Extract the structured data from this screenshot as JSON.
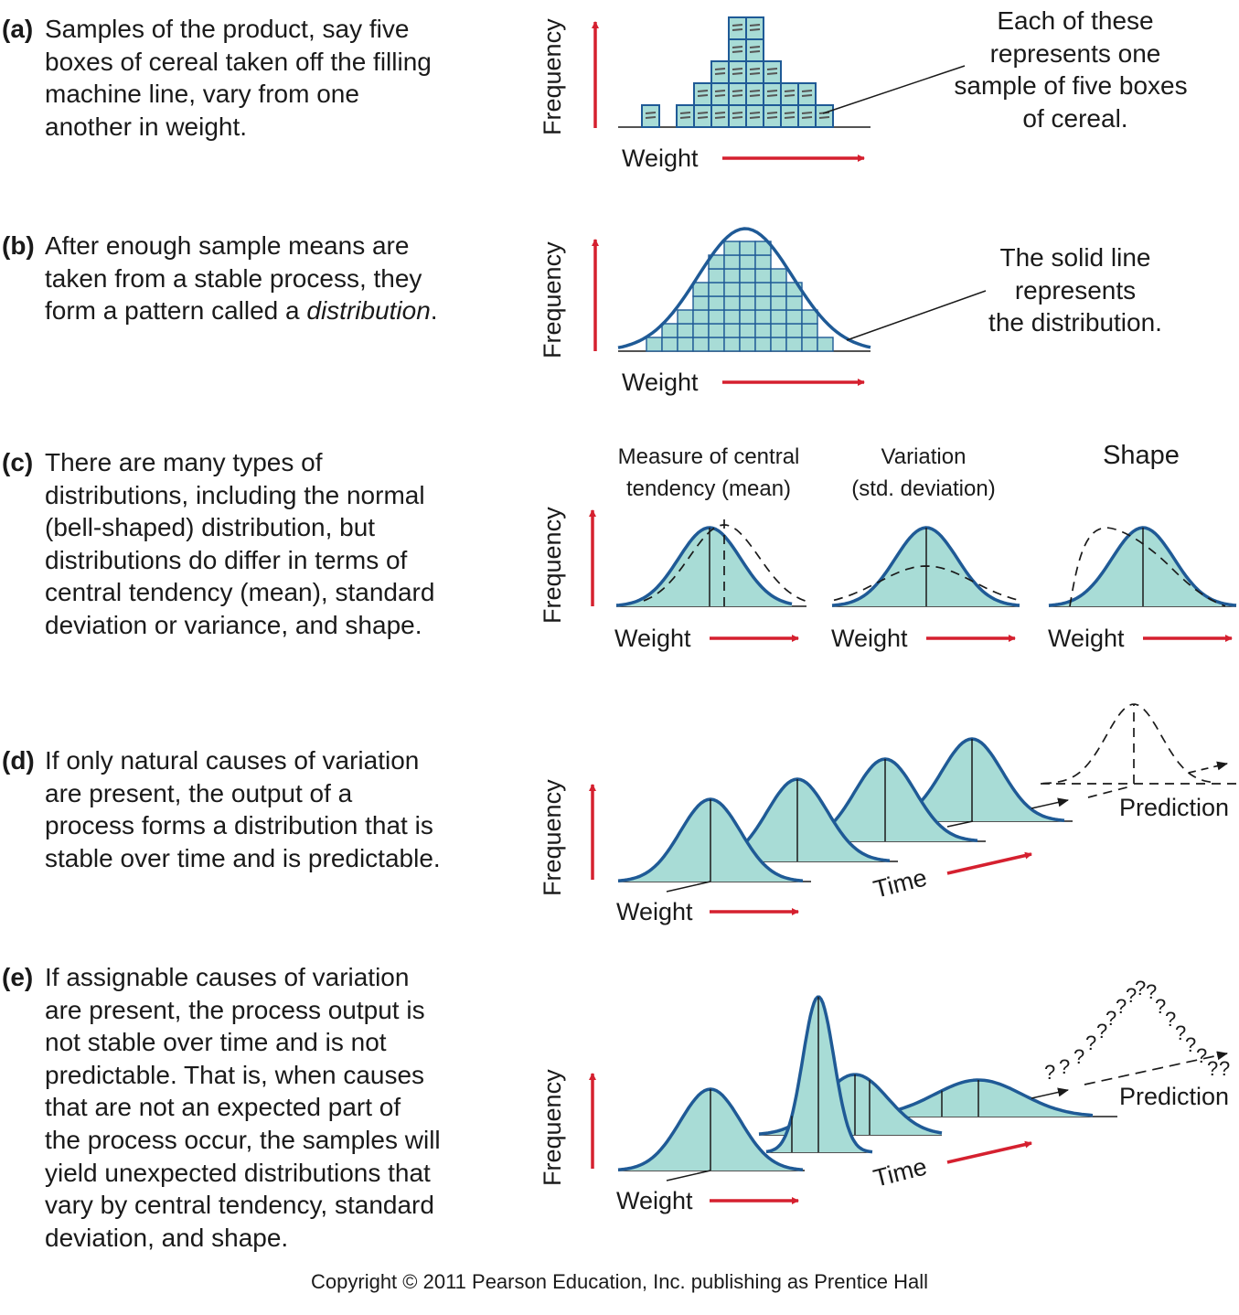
{
  "panels": [
    {
      "letter": "(a)",
      "lines": [
        "Samples of the product, say five",
        "boxes of cereal taken off the filling",
        "machine line, vary from one",
        "another in weight."
      ],
      "callout": [
        "Each of these",
        "represents one",
        "sample of five boxes",
        "of cereal."
      ]
    },
    {
      "letter": "(b)",
      "lines": [
        "After enough sample means are",
        "taken from a stable process, they",
        "form a pattern called a "
      ],
      "italic_word": "distribution",
      "period": ".",
      "callout": [
        "The solid line",
        "represents",
        "the distribution."
      ]
    },
    {
      "letter": "(c)",
      "lines": [
        "There are many types of",
        "distributions, including the normal",
        "(bell-shaped) distribution, but",
        "distributions do differ in terms of",
        "central tendency (mean), standard",
        "deviation or variance, and shape."
      ],
      "headers": {
        "mean": [
          "Measure of central",
          "tendency (mean)"
        ],
        "variation": [
          "Variation",
          "(std. deviation)"
        ],
        "shape": "Shape"
      }
    },
    {
      "letter": "(d)",
      "lines": [
        "If only natural causes of variation",
        "are present, the output of a",
        "process forms a distribution that is",
        "stable over time and is predictable."
      ],
      "prediction": "Prediction"
    },
    {
      "letter": "(e)",
      "lines": [
        "If assignable causes of variation",
        "are present, the process output is",
        "not stable over time and is not",
        "predictable. That is, when causes",
        "that are not an expected part of",
        "the process occur, the samples will",
        "yield unexpected distributions that",
        "vary by central tendency, standard",
        "deviation, and shape."
      ],
      "prediction": "Prediction",
      "question_marks": "?"
    }
  ],
  "axis": {
    "frequency": "Frequency",
    "weight": "Weight",
    "time": "Time"
  },
  "colors": {
    "fill": "#a8dcd6",
    "outline": "#1f5a96",
    "arrow": "#d5202f",
    "ink": "#1a1a1a"
  },
  "copyright": "Copyright © 2011 Pearson Education, Inc. publishing as Prentice Hall"
}
